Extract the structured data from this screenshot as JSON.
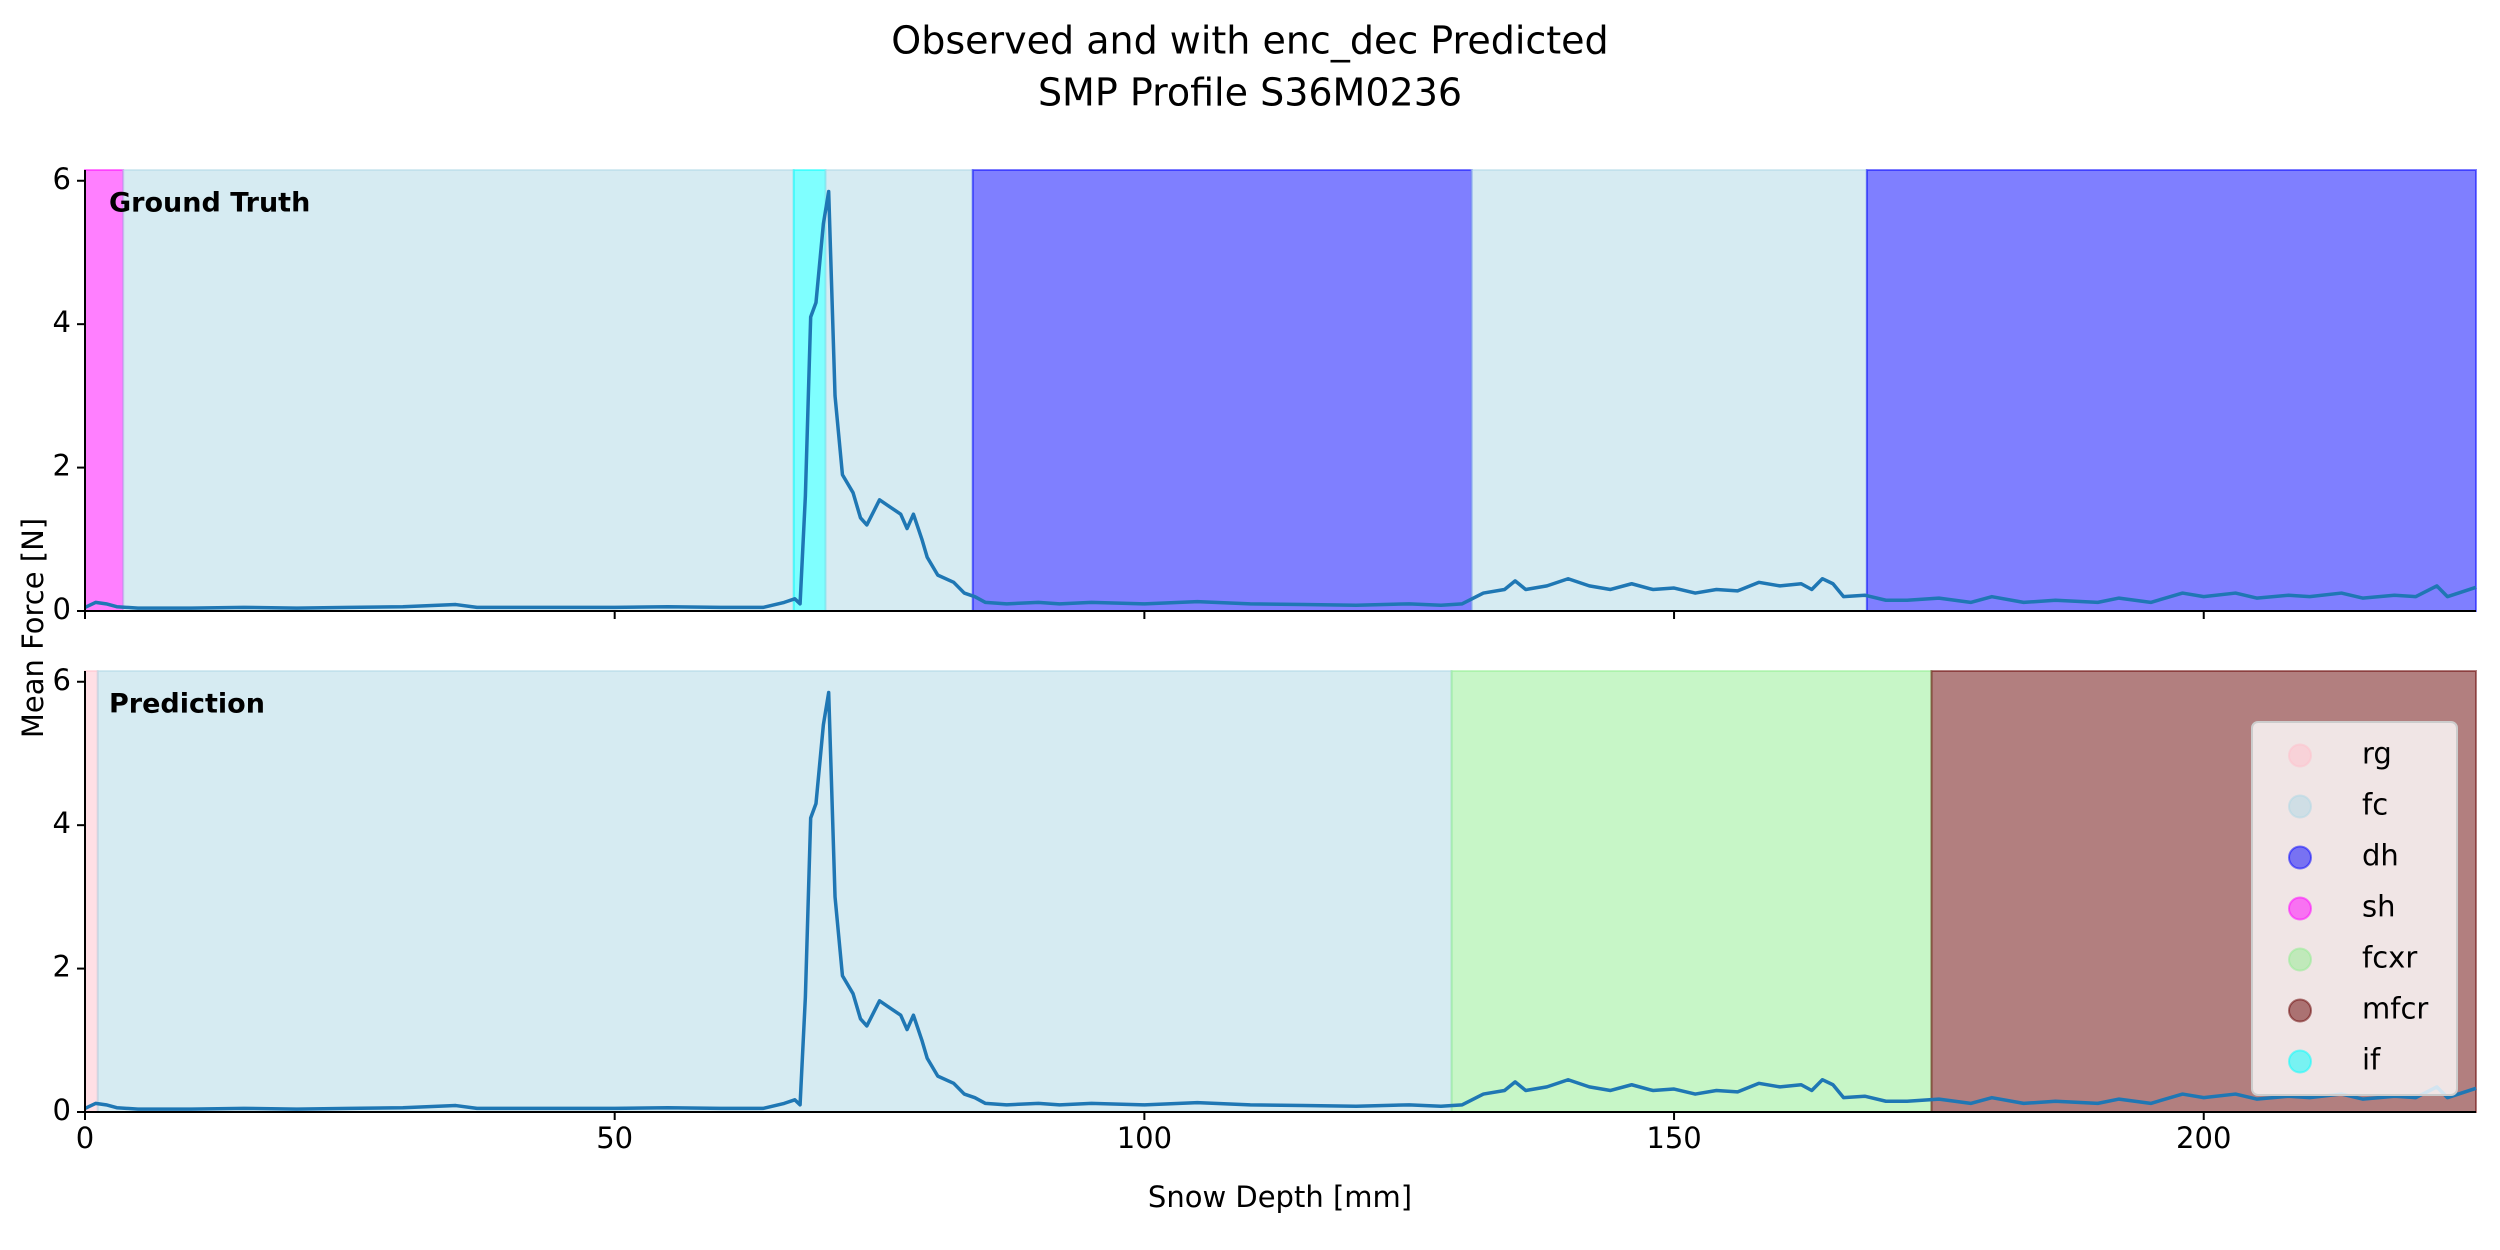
{
  "chart_data": [
    {
      "type": "line",
      "title": "Observed and with enc_dec Predicted",
      "subtitle": "SMP Profile S36M0236",
      "label": "Ground Truth",
      "ylabel": "Mean Force [N]",
      "x": [
        0,
        1,
        2,
        3,
        5,
        10,
        15,
        20,
        25,
        30,
        35,
        37,
        40,
        45,
        50,
        55,
        60,
        64,
        66,
        67,
        67.5,
        68,
        68.5,
        69,
        69.7,
        70.2,
        70.8,
        71.5,
        72.5,
        73.2,
        73.8,
        75,
        76,
        77,
        77.6,
        78.2,
        79,
        79.5,
        80.5,
        82,
        83,
        84,
        85,
        87,
        90,
        92,
        95,
        100,
        105,
        110,
        115,
        120,
        125,
        128,
        130,
        132,
        134,
        135,
        136,
        138,
        140,
        142,
        144,
        146,
        148,
        150,
        152,
        154,
        156,
        158,
        160,
        162,
        163,
        164,
        165,
        166,
        168,
        170,
        172,
        175,
        178,
        180,
        183,
        186,
        190,
        192,
        195,
        198,
        200,
        203,
        205,
        208,
        210,
        213,
        215,
        218,
        220,
        222,
        223,
        225.7
      ],
      "values": [
        0.05,
        0.12,
        0.1,
        0.06,
        0.04,
        0.04,
        0.05,
        0.04,
        0.05,
        0.06,
        0.09,
        0.05,
        0.05,
        0.05,
        0.05,
        0.06,
        0.05,
        0.05,
        0.12,
        0.17,
        0.1,
        1.6,
        4.1,
        4.3,
        5.4,
        5.85,
        3.0,
        1.9,
        1.65,
        1.3,
        1.2,
        1.55,
        1.45,
        1.35,
        1.15,
        1.35,
        1.0,
        0.75,
        0.5,
        0.4,
        0.25,
        0.2,
        0.12,
        0.1,
        0.12,
        0.1,
        0.12,
        0.1,
        0.13,
        0.1,
        0.09,
        0.08,
        0.1,
        0.08,
        0.1,
        0.25,
        0.3,
        0.42,
        0.3,
        0.35,
        0.45,
        0.35,
        0.3,
        0.38,
        0.3,
        0.32,
        0.25,
        0.3,
        0.28,
        0.4,
        0.35,
        0.38,
        0.3,
        0.45,
        0.38,
        0.2,
        0.22,
        0.15,
        0.15,
        0.18,
        0.12,
        0.2,
        0.12,
        0.15,
        0.12,
        0.18,
        0.12,
        0.25,
        0.2,
        0.25,
        0.18,
        0.22,
        0.2,
        0.25,
        0.18,
        0.22,
        0.2,
        0.35,
        0.2,
        0.33
      ],
      "color": "#1f77b4",
      "regions": [
        {
          "start": 0,
          "end": 3.6,
          "color": "#ff00ff"
        },
        {
          "start": 3.6,
          "end": 66.9,
          "color": "#add8e6"
        },
        {
          "start": 66.9,
          "end": 69.9,
          "color": "#00ffff"
        },
        {
          "start": 69.9,
          "end": 83.8,
          "color": "#add8e6"
        },
        {
          "start": 83.8,
          "end": 130.9,
          "color": "#0000ff"
        },
        {
          "start": 130.9,
          "end": 168.2,
          "color": "#add8e6"
        },
        {
          "start": 168.2,
          "end": 225.7,
          "color": "#0000ff"
        }
      ],
      "region_alpha": 0.5,
      "xlim": [
        0,
        225.7
      ],
      "xticks": [
        0,
        50,
        100,
        150,
        200
      ],
      "show_xtick_labels": false,
      "ylim": [
        0,
        6.15
      ],
      "yticks": [
        0,
        2,
        4,
        6
      ]
    },
    {
      "type": "line",
      "label": "Prediction",
      "xlabel": "Snow Depth [mm]",
      "x": [
        0,
        1,
        2,
        3,
        5,
        10,
        15,
        20,
        25,
        30,
        35,
        37,
        40,
        45,
        50,
        55,
        60,
        64,
        66,
        67,
        67.5,
        68,
        68.5,
        69,
        69.7,
        70.2,
        70.8,
        71.5,
        72.5,
        73.2,
        73.8,
        75,
        76,
        77,
        77.6,
        78.2,
        79,
        79.5,
        80.5,
        82,
        83,
        84,
        85,
        87,
        90,
        92,
        95,
        100,
        105,
        110,
        115,
        120,
        125,
        128,
        130,
        132,
        134,
        135,
        136,
        138,
        140,
        142,
        144,
        146,
        148,
        150,
        152,
        154,
        156,
        158,
        160,
        162,
        163,
        164,
        165,
        166,
        168,
        170,
        172,
        175,
        178,
        180,
        183,
        186,
        190,
        192,
        195,
        198,
        200,
        203,
        205,
        208,
        210,
        213,
        215,
        218,
        220,
        222,
        223,
        225.7
      ],
      "values": [
        0.05,
        0.12,
        0.1,
        0.06,
        0.04,
        0.04,
        0.05,
        0.04,
        0.05,
        0.06,
        0.09,
        0.05,
        0.05,
        0.05,
        0.05,
        0.06,
        0.05,
        0.05,
        0.12,
        0.17,
        0.1,
        1.6,
        4.1,
        4.3,
        5.4,
        5.85,
        3.0,
        1.9,
        1.65,
        1.3,
        1.2,
        1.55,
        1.45,
        1.35,
        1.15,
        1.35,
        1.0,
        0.75,
        0.5,
        0.4,
        0.25,
        0.2,
        0.12,
        0.1,
        0.12,
        0.1,
        0.12,
        0.1,
        0.13,
        0.1,
        0.09,
        0.08,
        0.1,
        0.08,
        0.1,
        0.25,
        0.3,
        0.42,
        0.3,
        0.35,
        0.45,
        0.35,
        0.3,
        0.38,
        0.3,
        0.32,
        0.25,
        0.3,
        0.28,
        0.4,
        0.35,
        0.38,
        0.3,
        0.45,
        0.38,
        0.2,
        0.22,
        0.15,
        0.15,
        0.18,
        0.12,
        0.2,
        0.12,
        0.15,
        0.12,
        0.18,
        0.12,
        0.25,
        0.2,
        0.25,
        0.18,
        0.22,
        0.2,
        0.25,
        0.18,
        0.22,
        0.2,
        0.35,
        0.2,
        0.33
      ],
      "color": "#1f77b4",
      "regions": [
        {
          "start": 0,
          "end": 1.2,
          "color": "#ffc0cb"
        },
        {
          "start": 1.2,
          "end": 129.0,
          "color": "#add8e6"
        },
        {
          "start": 129.0,
          "end": 174.3,
          "color": "#90ee90"
        },
        {
          "start": 174.3,
          "end": 225.7,
          "color": "#650000"
        }
      ],
      "region_alpha": 0.5,
      "xlim": [
        0,
        225.7
      ],
      "xticks": [
        0,
        50,
        100,
        150,
        200
      ],
      "show_xtick_labels": true,
      "ylim": [
        0,
        6.15
      ],
      "yticks": [
        0,
        2,
        4,
        6
      ],
      "legend": "lower right",
      "legend_entries": [
        {
          "name": "rg",
          "color": "#ffc0cb"
        },
        {
          "name": "fc",
          "color": "#add8e6"
        },
        {
          "name": "dh",
          "color": "#0000ff"
        },
        {
          "name": "sh",
          "color": "#ff00ff"
        },
        {
          "name": "fcxr",
          "color": "#90ee90"
        },
        {
          "name": "mfcr",
          "color": "#650000"
        },
        {
          "name": "if",
          "color": "#00ffff"
        }
      ]
    }
  ]
}
